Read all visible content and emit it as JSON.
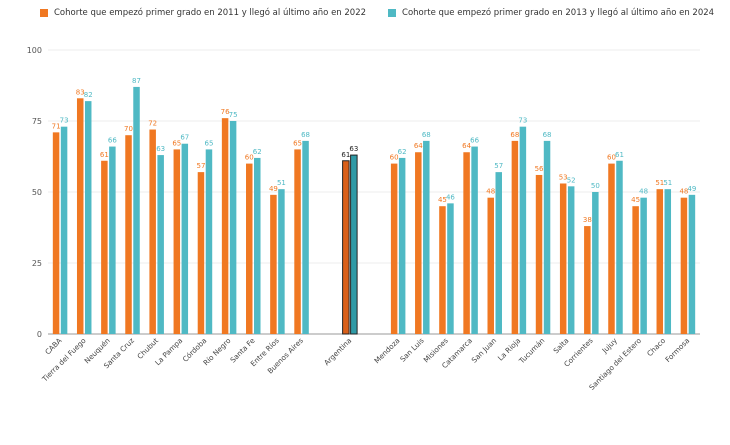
{
  "chart_data": {
    "type": "bar",
    "legend_position": "top",
    "grid": true,
    "ylim": [
      0,
      100
    ],
    "yticks": [
      0,
      25,
      50,
      75,
      100
    ],
    "categories": [
      "CABA",
      "Tierra del Fuego",
      "Neuquén",
      "Santa Cruz",
      "Chubut",
      "La Pampa",
      "Córdoba",
      "Río Negro",
      "Santa Fe",
      "Entre Ríos",
      "Buenos Aires",
      "",
      "Argentina",
      "",
      "Mendoza",
      "San Luis",
      "Misiones",
      "Catamarca",
      "San Juan",
      "La Rioja",
      "Tucumán",
      "Salta",
      "Corrientes",
      "Jujuy",
      "Santiago del Estero",
      "Chaco",
      "Formosa"
    ],
    "series": [
      {
        "name": "Cohorte que empezó primer grado en 2011 y llegó al último año en 2022",
        "color": "#f07822",
        "values": [
          71,
          83,
          61,
          70,
          72,
          65,
          57,
          76,
          60,
          49,
          65,
          null,
          61,
          null,
          60,
          64,
          45,
          64,
          48,
          68,
          56,
          53,
          38,
          60,
          45,
          51,
          48
        ]
      },
      {
        "name": "Cohorte que empezó primer grado en 2013 y llegó al último año en 2024",
        "color": "#4fb9c4",
        "values": [
          73,
          82,
          66,
          87,
          63,
          67,
          65,
          75,
          62,
          51,
          68,
          null,
          63,
          null,
          62,
          68,
          46,
          66,
          57,
          73,
          68,
          52,
          50,
          61,
          48,
          51,
          49
        ]
      }
    ],
    "highlight_category": "Argentina",
    "highlight_colors": [
      "#d9601a",
      "#2f9aa6"
    ],
    "highlight_stroke": "#222222"
  }
}
